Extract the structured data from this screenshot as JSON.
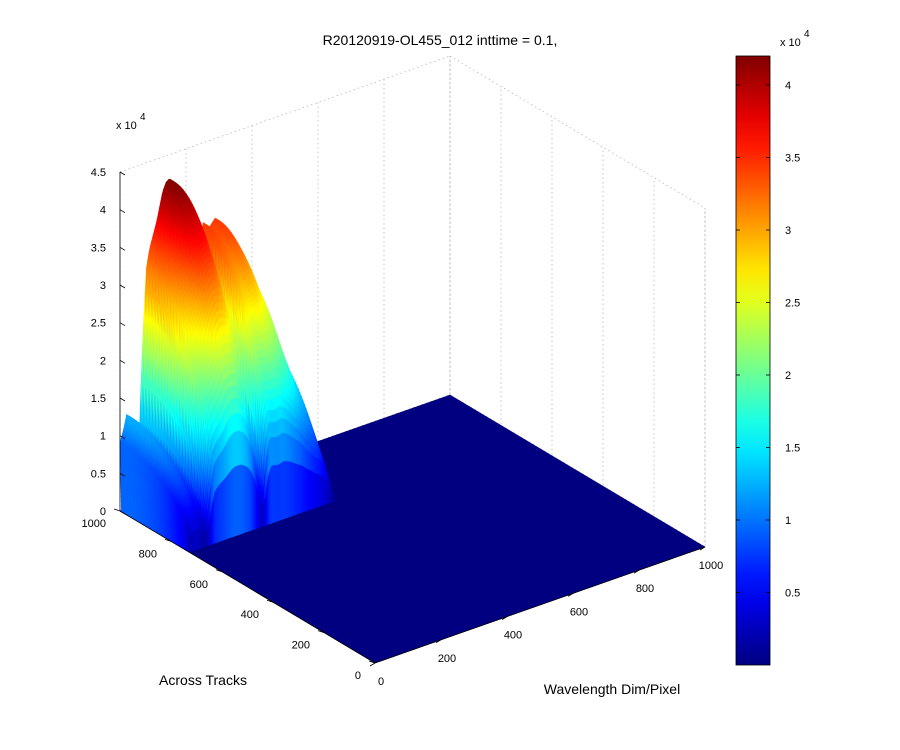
{
  "chart_data": {
    "type": "surface",
    "title": "R20120919-OL455_012 inttime = 0.1,",
    "xlabel": "Wavelength Dim/Pixel",
    "ylabel": "Across Tracks",
    "z_multiplier": "x 10",
    "z_exponent": "4",
    "x_ticks": [
      "0",
      "200",
      "400",
      "600",
      "800",
      "1000"
    ],
    "y_ticks": [
      "0",
      "200",
      "400",
      "600",
      "800",
      "1000"
    ],
    "z_ticks": [
      "0",
      "0.5",
      "1",
      "1.5",
      "2",
      "2.5",
      "3",
      "3.5",
      "4",
      "4.5"
    ],
    "xlim": [
      0,
      1000
    ],
    "ylim": [
      0,
      1000
    ],
    "zlim": [
      0,
      45000
    ],
    "grid": true,
    "colormap": "jet",
    "colorbar": {
      "range": [
        0,
        42000
      ],
      "ticks": [
        "0.5",
        "1",
        "1.5",
        "2",
        "2.5",
        "3",
        "3.5",
        "4"
      ],
      "multiplier": "x 10",
      "exponent": "4"
    },
    "data_extent": {
      "wavelength_pixel": [
        0,
        450
      ],
      "across_track": [
        730,
        1000
      ],
      "elsewhere_value": 0
    },
    "spectrum_profile": {
      "wavelength_pixel": [
        0,
        10,
        20,
        30,
        40,
        50,
        60,
        70,
        80,
        90,
        100,
        110,
        120,
        130,
        140,
        150,
        160,
        170,
        180,
        190,
        200,
        210,
        220,
        230,
        240,
        250,
        260,
        270,
        280,
        290,
        300,
        310,
        320,
        330,
        340,
        350,
        360,
        370,
        380,
        390,
        400,
        410,
        420,
        430,
        440,
        450
      ],
      "peak_value": [
        9000,
        10500,
        12500,
        12000,
        9000,
        7000,
        11000,
        23000,
        31000,
        33500,
        35000,
        36500,
        38500,
        40500,
        41500,
        41800,
        41300,
        40000,
        38000,
        34500,
        29000,
        20000,
        13000,
        14000,
        28000,
        34500,
        34000,
        33500,
        34000,
        34500,
        33500,
        32500,
        31000,
        29500,
        28500,
        26500,
        24500,
        23000,
        21000,
        19500,
        18500,
        16000,
        13000,
        9000,
        4000,
        0
      ]
    }
  }
}
